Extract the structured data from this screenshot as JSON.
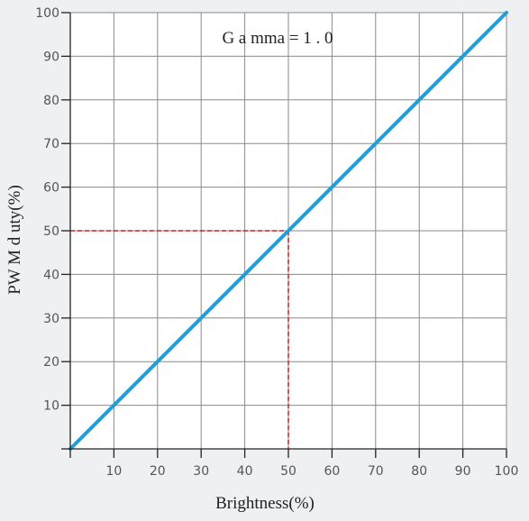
{
  "chart_data": {
    "type": "line",
    "xlabel": "Brightness(%)",
    "ylabel": "PW M d uty(%)",
    "annotation": "G a mma = 1 . 0",
    "xlim": [
      0,
      100
    ],
    "ylim": [
      0,
      100
    ],
    "x_ticks": [
      0,
      10,
      20,
      30,
      40,
      50,
      60,
      70,
      80,
      90,
      100
    ],
    "x_tick_labels": [
      "10",
      "20",
      "30",
      "40",
      "50",
      "60",
      "70",
      "80",
      "90",
      "100"
    ],
    "y_ticks": [
      0,
      10,
      20,
      30,
      40,
      50,
      60,
      70,
      80,
      90,
      100
    ],
    "y_tick_labels": [
      "10",
      "20",
      "30",
      "40",
      "50",
      "60",
      "70",
      "80",
      "90",
      "100"
    ],
    "grid": true,
    "series": [
      {
        "x": [
          0,
          100
        ],
        "y": [
          0,
          100
        ],
        "color": "#1a9fe0"
      }
    ],
    "reference_point": {
      "x": 50,
      "y": 50,
      "color": "#c0242c"
    }
  }
}
